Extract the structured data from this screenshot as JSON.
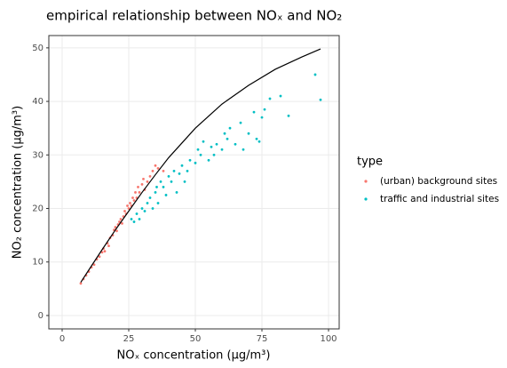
{
  "chart_data": {
    "type": "scatter",
    "title": "empirical relationship between NOₓ and NO₂",
    "x_label": "NOₓ concentration (µg/m³)",
    "y_label": "NO₂ concentration (µg/m³)",
    "legend_title": "type",
    "legend_position": "right",
    "grid": true,
    "xlim": [
      -5,
      104
    ],
    "xticks": [
      0,
      25,
      50,
      75,
      100
    ],
    "ylim": [
      -2.5,
      52.3
    ],
    "yticks": [
      0,
      10,
      20,
      30,
      40,
      50
    ],
    "series": [
      {
        "name": "(urban) background sites",
        "color": "#F8766D",
        "x": [
          7,
          8,
          9,
          10,
          11,
          12,
          13,
          14,
          15,
          15.5,
          16,
          17,
          17.5,
          18,
          19,
          19.5,
          20,
          20.5,
          21,
          21.5,
          22,
          22.5,
          23,
          23.5,
          24,
          24.5,
          25,
          25.5,
          26,
          26.5,
          27,
          27.5,
          28,
          28.5,
          29,
          30,
          30.5,
          31,
          32,
          33,
          34,
          35,
          36,
          38
        ],
        "values": [
          6,
          6.8,
          7.5,
          8.2,
          9,
          9.5,
          10.5,
          11,
          11.8,
          12.5,
          12,
          13.5,
          13,
          14.5,
          15,
          16,
          16.5,
          15.8,
          17,
          17.5,
          18,
          17.2,
          18.5,
          19.5,
          19,
          20.5,
          20,
          21,
          20.5,
          22,
          21.5,
          23,
          22,
          24,
          23,
          24.5,
          25.5,
          23.5,
          25,
          26,
          27,
          28,
          27.5,
          27
        ]
      },
      {
        "name": "traffic and industrial sites",
        "color": "#00BFC4",
        "x": [
          26,
          27,
          28,
          29,
          30,
          31,
          32,
          33,
          34,
          35,
          35.5,
          36,
          37,
          38,
          39,
          40,
          41,
          42,
          43,
          44,
          45,
          46,
          47,
          48,
          50,
          51,
          52,
          53,
          55,
          56,
          57,
          58,
          60,
          61,
          62,
          63,
          65,
          67,
          68,
          70,
          72,
          73,
          74,
          75,
          76,
          78,
          82,
          85,
          95,
          97
        ],
        "values": [
          18,
          17.5,
          19,
          18,
          20,
          19.5,
          21,
          22,
          20,
          23,
          24,
          21,
          25,
          24,
          22.5,
          26,
          25,
          27,
          23,
          26.5,
          28,
          25,
          27,
          29,
          28.5,
          31,
          30,
          32.5,
          29,
          31.5,
          30,
          32,
          31,
          34,
          33,
          35,
          32,
          36,
          31,
          34,
          38,
          33,
          32.5,
          37,
          38.5,
          40.5,
          41,
          37.3,
          45,
          40.3
        ]
      },
      {
        "type": "line",
        "color": "#000000",
        "x": [
          7,
          10,
          15,
          20,
          25,
          30,
          35,
          40,
          50,
          60,
          70,
          80,
          90,
          97
        ],
        "values": [
          6.2,
          8.5,
          12.3,
          16,
          19.5,
          23,
          26.3,
          29.5,
          35,
          39.5,
          43,
          46,
          48.3,
          49.8
        ]
      }
    ]
  }
}
